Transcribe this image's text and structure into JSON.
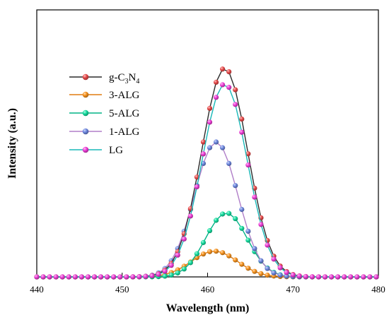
{
  "chart_data": {
    "type": "line",
    "xlabel": "Wavelength (nm)",
    "ylabel": "Intensity (a.u.)",
    "xlim": [
      440,
      480
    ],
    "ylim": [
      0,
      1.0
    ],
    "x_ticks": [
      "440",
      "450",
      "460",
      "470",
      "480"
    ],
    "y_ticks_shown": false,
    "grid": false,
    "legend_position": "upper-left",
    "marker": "sphere",
    "series": [
      {
        "name_main": "g-C",
        "sub1": "3",
        "name_mid": "N",
        "sub2": "4",
        "name": "g-C3N4",
        "line_color": "#2b2b2b",
        "marker_color": "#e84a4a",
        "peak_x": 462.0,
        "peak_y": 0.995,
        "width_nm": 6.3,
        "fit_range": [
          448,
          477
        ]
      },
      {
        "name": "3-ALG",
        "line_color": "#e07b10",
        "marker_color": "#f7931e",
        "peak_x": 460.8,
        "peak_y": 0.123,
        "width_nm": 6.3,
        "fit_range": [
          448,
          476
        ]
      },
      {
        "name": "5-ALG",
        "line_color": "#00b386",
        "marker_color": "#16dea0",
        "peak_x": 462.2,
        "peak_y": 0.305,
        "width_nm": 5.7,
        "fit_range": [
          448,
          476
        ]
      },
      {
        "name": "1-ALG",
        "line_color": "#b07ec8",
        "marker_color": "#6e88e0",
        "peak_x": 461.0,
        "peak_y": 0.643,
        "width_nm": 6.0,
        "fit_range": [
          448,
          476
        ]
      },
      {
        "name": "LG",
        "line_color": "#19b8b8",
        "marker_color": "#ef3ed8",
        "peak_x": 462.0,
        "peak_y": 0.92,
        "width_nm": 6.2,
        "fit_range": [
          448,
          477
        ]
      }
    ]
  }
}
